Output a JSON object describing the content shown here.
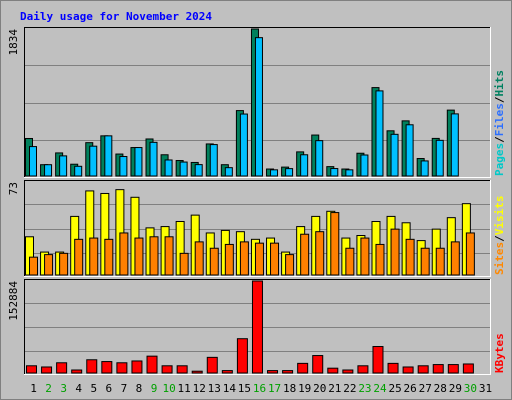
{
  "chart_data": {
    "type": "bar",
    "title": "Daily usage for November 2024",
    "categories": [
      "1",
      "2",
      "3",
      "4",
      "5",
      "6",
      "7",
      "8",
      "9",
      "10",
      "11",
      "12",
      "13",
      "14",
      "15",
      "16",
      "17",
      "18",
      "19",
      "20",
      "21",
      "22",
      "23",
      "24",
      "25",
      "26",
      "27",
      "28",
      "29",
      "30",
      "31"
    ],
    "weekend_days": [
      "2",
      "3",
      "9",
      "10",
      "16",
      "17",
      "23",
      "24",
      "30"
    ],
    "panels": [
      {
        "id": "top",
        "max_label": "1834",
        "ymax": 1834,
        "legend": [
          {
            "text": "Pages",
            "color": "#00c8c8"
          },
          {
            "text": "Files",
            "color": "#2b6fff"
          },
          {
            "text": "Hits",
            "color": "#008060"
          }
        ],
        "series": [
          {
            "key": "pages",
            "values": [
              468,
              141,
              288,
              147,
              416,
              501,
              274,
              355,
              462,
              265,
              193,
              169,
              400,
              141,
              816,
              1742,
              87,
              111,
              301,
              511,
              117,
              87,
              284,
              1103,
              564,
              688,
              218,
              469,
              822,
              0,
              0
            ]
          },
          {
            "key": "files",
            "values": [
              367,
              141,
              251,
              121,
              372,
              501,
              243,
              355,
              420,
              200,
              174,
              142,
              392,
              104,
              773,
              1726,
              77,
              92,
              265,
              441,
              93,
              77,
              262,
              1062,
              520,
              639,
              188,
              445,
              775,
              0,
              0
            ]
          },
          {
            "key": "hits",
            "values": [
              468,
              141,
              288,
              147,
              416,
              501,
              274,
              355,
              462,
              265,
              193,
              169,
              400,
              141,
              816,
              1834,
              87,
              111,
              301,
              511,
              117,
              87,
              284,
              1103,
              564,
              688,
              218,
              469,
              822,
              0,
              0
            ]
          }
        ]
      },
      {
        "id": "middle",
        "max_label": "73",
        "ymax": 73,
        "legend": [
          {
            "text": "Sites",
            "color": "#ff8800"
          },
          {
            "text": "Visits",
            "color": "#ffff00"
          }
        ],
        "series": [
          {
            "key": "visits",
            "values": [
              30,
              18,
              18,
              46,
              66,
              64,
              67,
              61,
              37,
              38,
              42,
              47,
              33,
              35,
              34,
              28,
              29,
              18,
              38,
              46,
              50,
              29,
              31,
              42,
              46,
              41,
              27,
              36,
              45,
              56,
              0
            ]
          },
          {
            "key": "sites",
            "values": [
              14,
              16,
              17,
              28,
              29,
              28,
              33,
              29,
              30,
              30,
              17,
              26,
              21,
              24,
              26,
              25,
              25,
              16,
              32,
              34,
              49,
              21,
              29,
              24,
              36,
              28,
              21,
              21,
              26,
              33,
              0
            ]
          }
        ]
      },
      {
        "id": "bottom",
        "max_label": "152884",
        "ymax": 152884,
        "legend": [
          {
            "text": "KBytes",
            "color": "#ff0000"
          }
        ],
        "series": [
          {
            "key": "kbytes",
            "values": [
              12000,
              10000,
              17000,
              5000,
              22000,
              19000,
              17000,
              20000,
              28000,
              12000,
              12000,
              3000,
              26000,
              4000,
              57000,
              152884,
              4000,
              4000,
              16000,
              29000,
              8000,
              5000,
              12000,
              44000,
              16000,
              10000,
              12000,
              14000,
              14000,
              15000,
              0
            ]
          }
        ]
      }
    ],
    "colors": {
      "hits": "#00805c",
      "files": "#00c0ff",
      "visits": "#ffff00",
      "sites": "#ff8000",
      "kbytes": "#ff0000",
      "weekday_label": "#000000",
      "weekend_label": "#00a000"
    }
  }
}
